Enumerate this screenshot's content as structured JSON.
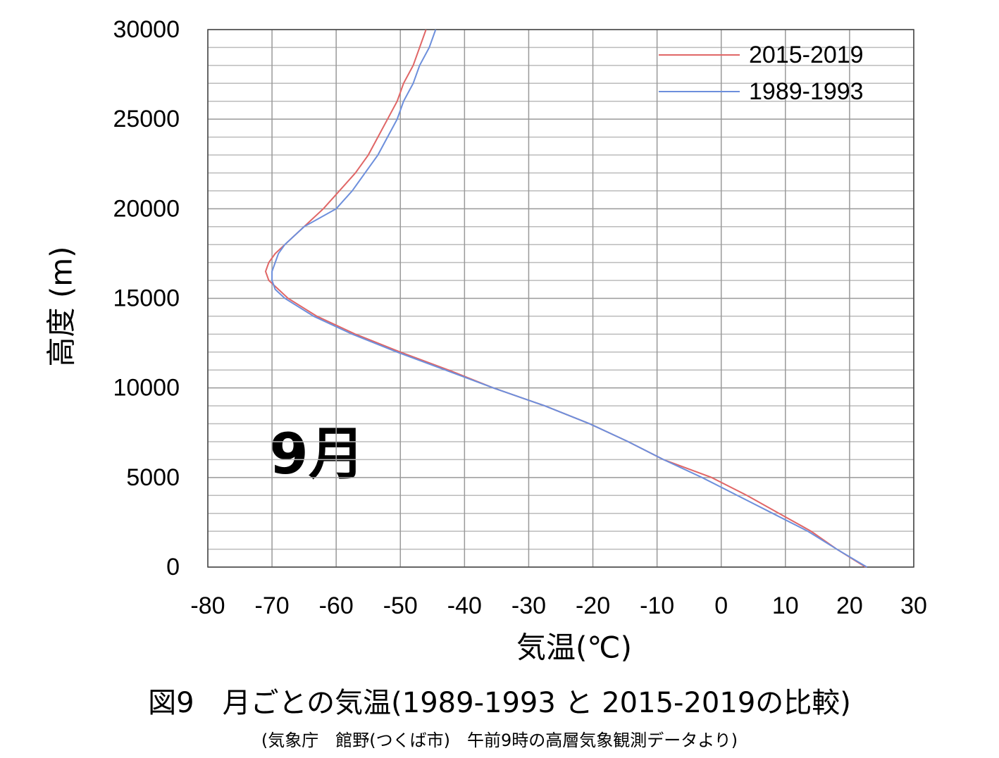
{
  "chart_data": {
    "type": "line",
    "annotation": "9月",
    "xlabel": "気温(℃)",
    "ylabel": "高度 (m)",
    "caption": "図9　月ごとの気温(1989-1993 と 2015-2019の比較)",
    "source": "(気象庁　館野(つくば市)　午前9時の高層気象観測データより)",
    "xlim": [
      -80,
      30
    ],
    "xticks": [
      -80,
      -70,
      -60,
      -50,
      -40,
      -30,
      -20,
      -10,
      0,
      10,
      20,
      30
    ],
    "ylim": [
      0,
      30000
    ],
    "yticks": [
      0,
      5000,
      10000,
      15000,
      20000,
      25000,
      30000
    ],
    "yminorticks": [
      1000,
      2000,
      3000,
      4000,
      6000,
      7000,
      8000,
      9000,
      11000,
      12000,
      13000,
      14000,
      16000,
      17000,
      18000,
      19000,
      21000,
      22000,
      23000,
      24000,
      26000,
      27000,
      28000,
      29000
    ],
    "grid": true,
    "legend": "upper right",
    "series": [
      {
        "name": "2015-2019",
        "color": "#e06666",
        "x": [
          22.5,
          18,
          14,
          9,
          4,
          -1.5,
          -9,
          -14.5,
          -20.5,
          -27.5,
          -35.5,
          -42.5,
          -50,
          -57,
          -63,
          -67.5,
          -69,
          -70.5,
          -71,
          -70.5,
          -69.5,
          -68,
          -65,
          -62,
          -59.5,
          -57,
          -55,
          -53.5,
          -52,
          -50.5,
          -49.5,
          -48,
          -47,
          -46
        ],
        "values": [
          0,
          1000,
          2000,
          3000,
          4000,
          5000,
          6000,
          7000,
          8000,
          9000,
          10000,
          11000,
          12000,
          13000,
          14000,
          15000,
          15500,
          16000,
          16500,
          17000,
          17500,
          18000,
          19000,
          20000,
          21000,
          22000,
          23000,
          24000,
          25000,
          26000,
          27000,
          28000,
          29000,
          30000
        ]
      },
      {
        "name": "1989-1993",
        "color": "#6d8fdc",
        "x": [
          22.7,
          18,
          13.5,
          8,
          2.5,
          -3,
          -9,
          -14.5,
          -20.5,
          -27.5,
          -35.5,
          -43,
          -50.5,
          -57.5,
          -63.5,
          -68,
          -69.5,
          -70,
          -70,
          -69.5,
          -69,
          -68,
          -65,
          -60,
          -57.5,
          -55.5,
          -53.5,
          -52,
          -50.5,
          -49.5,
          -48,
          -47,
          -45.5,
          -44.5
        ],
        "values": [
          0,
          1000,
          2000,
          3000,
          4000,
          5000,
          6000,
          7000,
          8000,
          9000,
          10000,
          11000,
          12000,
          13000,
          14000,
          15000,
          15500,
          16000,
          16500,
          17000,
          17500,
          18000,
          19000,
          20000,
          21000,
          22000,
          23000,
          24000,
          25000,
          26000,
          27000,
          28000,
          29000,
          30000
        ]
      }
    ]
  }
}
